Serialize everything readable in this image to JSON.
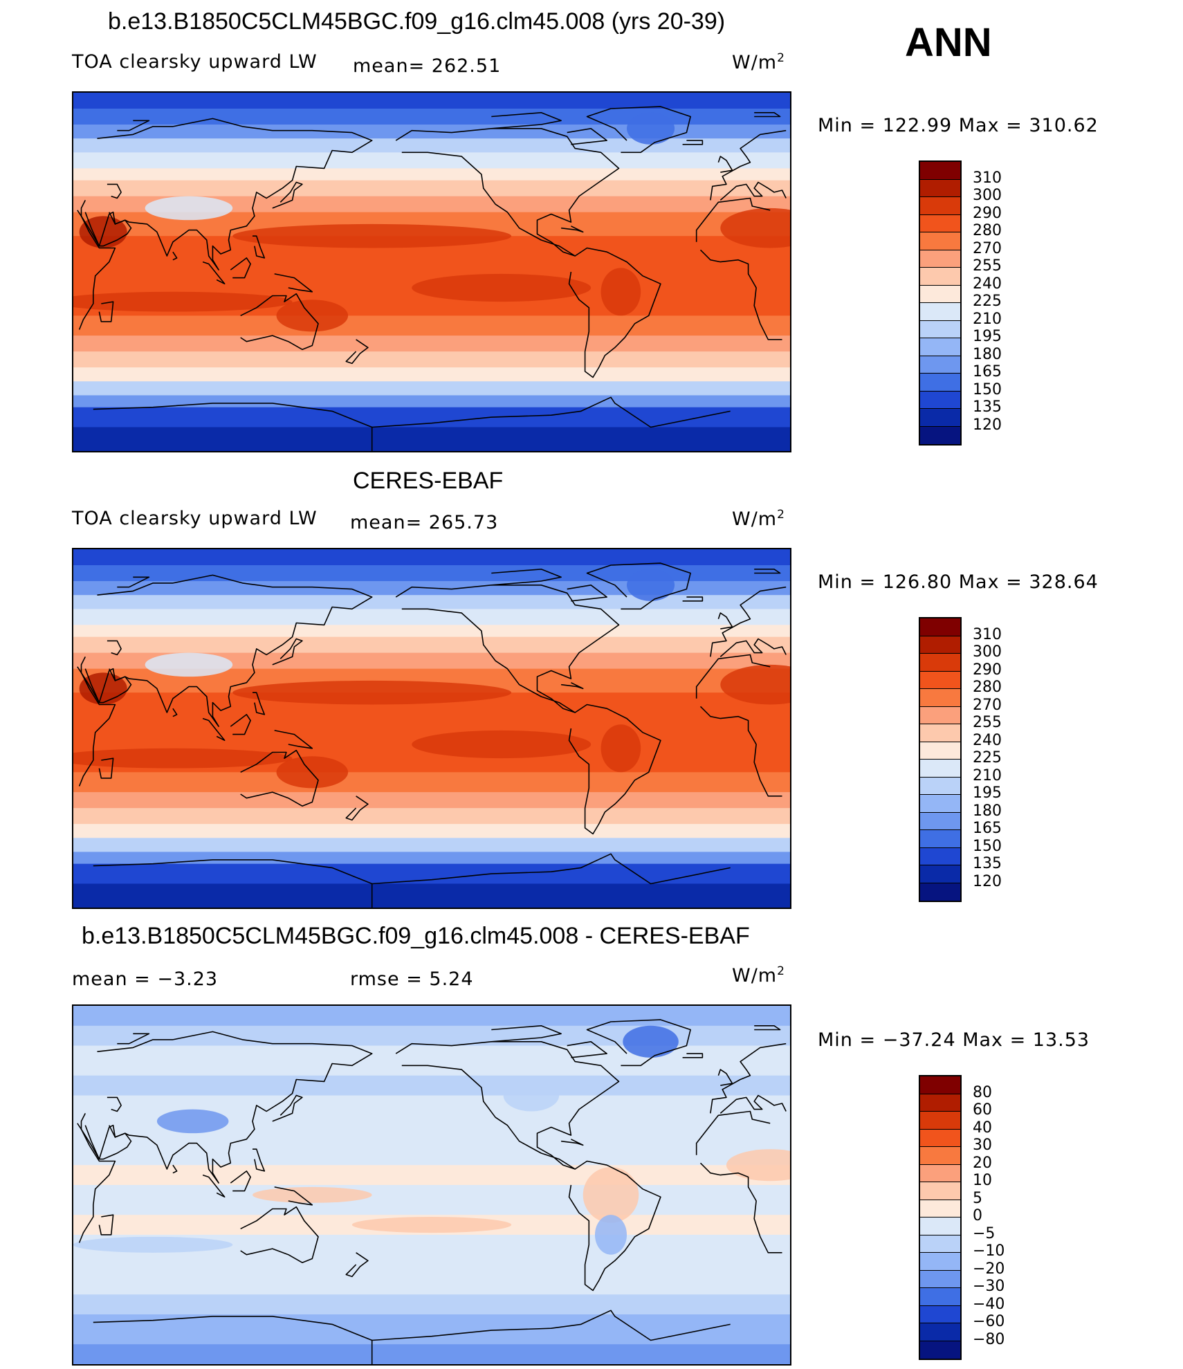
{
  "season": "ANN",
  "units": "W/m",
  "units_sup": "2",
  "panels": [
    {
      "title": "b.e13.B1850C5CLM45BGC.f09_g16.clm45.008 (yrs 20-39)",
      "left_label": "TOA clearsky upward LW",
      "stat_text": "mean=  262.51",
      "minmax": "Min  =  122.99  Max  =  310.62",
      "kind": "abs"
    },
    {
      "title": "CERES-EBAF",
      "left_label": "TOA clearsky upward LW",
      "stat_text": "mean=  265.73",
      "minmax": "Min  =  126.80  Max  =  328.64",
      "kind": "abs"
    },
    {
      "title": "b.e13.B1850C5CLM45BGC.f09_g16.clm45.008 - CERES-EBAF",
      "left_label": "mean  =    −3.23",
      "stat_text": "rmse  =     5.24",
      "minmax": "Min  =  −37.24  Max  =    13.53",
      "kind": "diff"
    }
  ],
  "colorbars": {
    "abs": {
      "labels": [
        "310",
        "300",
        "290",
        "280",
        "270",
        "255",
        "240",
        "225",
        "210",
        "195",
        "180",
        "165",
        "150",
        "135",
        "120"
      ],
      "colors": [
        "#7f0000",
        "#b01d00",
        "#d93a0a",
        "#f1541c",
        "#f8793f",
        "#fba07c",
        "#fdc9ad",
        "#fde9db",
        "#dbe8f8",
        "#bad2f8",
        "#94b6f6",
        "#6e97ef",
        "#3f6fe4",
        "#1f47d2",
        "#0a2aa8",
        "#061480"
      ]
    },
    "diff": {
      "labels": [
        "80",
        "60",
        "40",
        "30",
        "20",
        "10",
        "5",
        "0",
        "−5",
        "−10",
        "−20",
        "−30",
        "−40",
        "−60",
        "−80"
      ],
      "colors": [
        "#7f0000",
        "#b01d00",
        "#d93a0a",
        "#f1541c",
        "#f8793f",
        "#fba07c",
        "#fdc9ad",
        "#fde9db",
        "#dbe8f8",
        "#bad2f8",
        "#94b6f6",
        "#6e97ef",
        "#3f6fe4",
        "#1f47d2",
        "#0a2aa8",
        "#061480"
      ]
    }
  }
}
